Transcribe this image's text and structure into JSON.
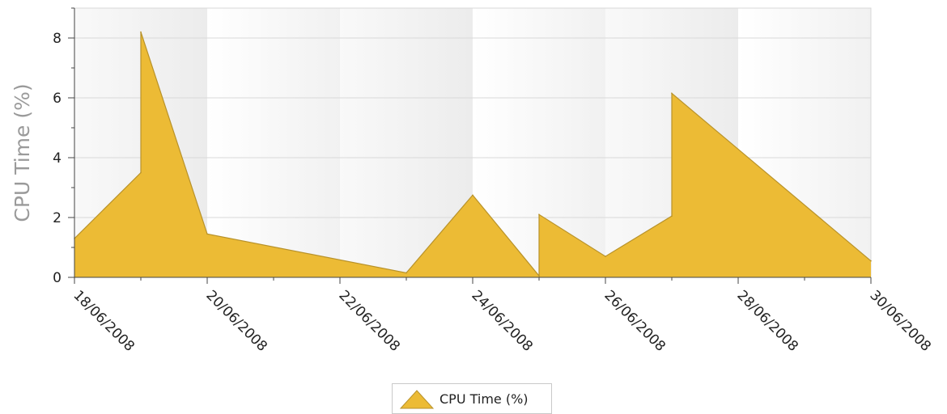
{
  "chart_data": {
    "type": "area",
    "ylabel": "CPU Time (%)",
    "xlabel": "",
    "ylim": [
      0,
      9
    ],
    "y_ticks": [
      "0",
      "2",
      "4",
      "6",
      "8"
    ],
    "x_ticks": [
      "18/06/2008",
      "20/06/2008",
      "22/06/2008",
      "24/06/2008",
      "26/06/2008",
      "28/06/2008",
      "30/06/2008"
    ],
    "x_range": [
      "18/06/2008",
      "30/06/2008"
    ],
    "grid": true,
    "legend_position": "bottom",
    "series": [
      {
        "name": "CPU Time (%)",
        "color": "#ECBB35",
        "points": [
          {
            "x": "18/06/2008",
            "y": 1.3
          },
          {
            "x": "19/06/2008",
            "y": 3.5
          },
          {
            "x": "19/06/2008",
            "y": 8.2
          },
          {
            "x": "20/06/2008",
            "y": 1.45
          },
          {
            "x": "23/06/2008",
            "y": 0.15
          },
          {
            "x": "24/06/2008",
            "y": 2.75
          },
          {
            "x": "25/06/2008",
            "y": 0.05
          },
          {
            "x": "25/06/2008",
            "y": 2.1
          },
          {
            "x": "26/06/2008",
            "y": 0.7
          },
          {
            "x": "27/06/2008",
            "y": 2.05
          },
          {
            "x": "27/06/2008",
            "y": 6.15
          },
          {
            "x": "30/06/2008",
            "y": 0.55
          }
        ]
      }
    ]
  },
  "legend": {
    "label": "CPU Time (%)"
  },
  "colors": {
    "series_fill": "#ECBB35",
    "series_stroke": "#B8922A"
  }
}
